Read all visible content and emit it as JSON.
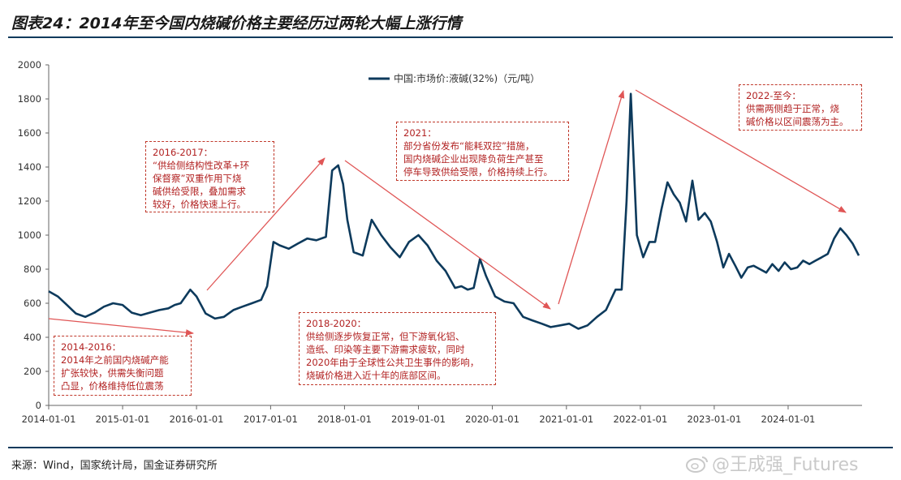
{
  "title": "图表24：2014年至今国内烧碱价格主要经历过两轮大幅上涨行情",
  "source": "来源：Wind，国家统计局，国金证券研究所",
  "watermark": "@王成强_Futures",
  "colors": {
    "line": "#0d3a5c",
    "arrow": "#e05656",
    "annotation": "#c0392b",
    "axis": "#666666"
  },
  "annotations": [
    {
      "id": "a2014",
      "text": "2014-2016：\n2014年之前国内烧碱产能\n扩张较快，供需失衡问题\n凸显，价格维持低位震荡"
    },
    {
      "id": "a2016",
      "text": "2016-2017：\n“供给侧结构性改革+环\n保督察”双重作用下烧\n碱供给受限，叠加需求\n较好，价格快速上行。"
    },
    {
      "id": "a2018",
      "text": "2018-2020：\n供给侧逐步恢复正常，但下游氧化铝、\n造纸、印染等主要下游需求疲软，同时\n2020年由于全球性公共卫生事件的影响，\n烧碱价格进入近十年的底部区间。"
    },
    {
      "id": "a2021",
      "text": "2021：\n部分省份发布“能耗双控”措施，\n国内烧碱企业出现降负荷生产甚至\n停车导致供给受限，价格持续上行。"
    },
    {
      "id": "a2022",
      "text": "2022-至今：\n供需两侧趋于正常，烧\n碱价格以区间震荡为主。"
    }
  ],
  "chart_data": {
    "type": "line",
    "title": "",
    "xlabel": "",
    "ylabel": "",
    "ylim": [
      0,
      2000
    ],
    "yticks": [
      0,
      200,
      400,
      600,
      800,
      1000,
      1200,
      1400,
      1600,
      1800,
      2000
    ],
    "xlim": [
      "2014-01-01",
      "2024-12-31"
    ],
    "xticks": [
      "2014-01-01",
      "2015-01-01",
      "2016-01-01",
      "2017-01-01",
      "2018-01-01",
      "2019-01-01",
      "2020-01-01",
      "2021-01-01",
      "2022-01-01",
      "2023-01-01",
      "2024-01-01"
    ],
    "grid": false,
    "legend": "top-center",
    "series": [
      {
        "name": "中国:市场价:液碱(32%)（元/吨）",
        "x": [
          "2014-01-01",
          "2014-02-15",
          "2014-04-01",
          "2014-05-15",
          "2014-07-01",
          "2014-08-15",
          "2014-10-01",
          "2014-11-15",
          "2015-01-01",
          "2015-02-15",
          "2015-04-01",
          "2015-05-15",
          "2015-07-01",
          "2015-08-15",
          "2015-09-15",
          "2015-10-15",
          "2015-12-01",
          "2016-01-01",
          "2016-02-15",
          "2016-04-01",
          "2016-05-15",
          "2016-07-01",
          "2016-08-15",
          "2016-10-01",
          "2016-11-15",
          "2016-12-15",
          "2017-01-15",
          "2017-02-15",
          "2017-04-01",
          "2017-05-15",
          "2017-07-01",
          "2017-08-15",
          "2017-10-01",
          "2017-11-01",
          "2017-12-01",
          "2017-12-25",
          "2018-01-15",
          "2018-02-15",
          "2018-04-01",
          "2018-05-15",
          "2018-07-01",
          "2018-08-15",
          "2018-10-01",
          "2018-11-15",
          "2019-01-01",
          "2019-02-15",
          "2019-04-01",
          "2019-05-15",
          "2019-07-01",
          "2019-08-01",
          "2019-09-01",
          "2019-10-01",
          "2019-11-01",
          "2019-12-01",
          "2020-01-15",
          "2020-03-01",
          "2020-04-15",
          "2020-06-01",
          "2020-07-15",
          "2020-09-01",
          "2020-10-15",
          "2020-12-01",
          "2021-01-15",
          "2021-03-01",
          "2021-04-15",
          "2021-06-01",
          "2021-07-15",
          "2021-09-01",
          "2021-10-01",
          "2021-10-25",
          "2021-11-15",
          "2021-12-15",
          "2022-01-15",
          "2022-02-15",
          "2022-03-15",
          "2022-04-15",
          "2022-05-15",
          "2022-06-15",
          "2022-07-15",
          "2022-08-15",
          "2022-09-15",
          "2022-10-15",
          "2022-11-15",
          "2022-12-15",
          "2023-01-15",
          "2023-02-15",
          "2023-03-15",
          "2023-04-15",
          "2023-05-15",
          "2023-06-15",
          "2023-07-15",
          "2023-08-15",
          "2023-09-15",
          "2023-10-15",
          "2023-11-15",
          "2023-12-15",
          "2024-01-15",
          "2024-02-15",
          "2024-03-15",
          "2024-04-15",
          "2024-05-15",
          "2024-06-15",
          "2024-07-15",
          "2024-08-15",
          "2024-09-15",
          "2024-10-15",
          "2024-11-15",
          "2024-12-15"
        ],
        "values": [
          670,
          640,
          590,
          540,
          520,
          545,
          580,
          600,
          590,
          545,
          530,
          545,
          560,
          570,
          590,
          600,
          680,
          640,
          540,
          510,
          520,
          560,
          580,
          600,
          620,
          700,
          960,
          940,
          920,
          950,
          980,
          970,
          990,
          1380,
          1410,
          1300,
          1090,
          900,
          880,
          1090,
          1000,
          930,
          870,
          960,
          1000,
          940,
          850,
          790,
          690,
          700,
          680,
          690,
          860,
          760,
          640,
          610,
          600,
          520,
          500,
          480,
          460,
          470,
          480,
          450,
          470,
          520,
          560,
          680,
          680,
          1200,
          1830,
          1000,
          870,
          960,
          960,
          1150,
          1310,
          1240,
          1190,
          1080,
          1320,
          1090,
          1130,
          1080,
          960,
          810,
          890,
          820,
          750,
          810,
          820,
          800,
          780,
          830,
          790,
          840,
          800,
          810,
          850,
          830,
          850,
          870,
          890,
          980,
          1040,
          1000,
          950,
          880
        ]
      }
    ]
  }
}
